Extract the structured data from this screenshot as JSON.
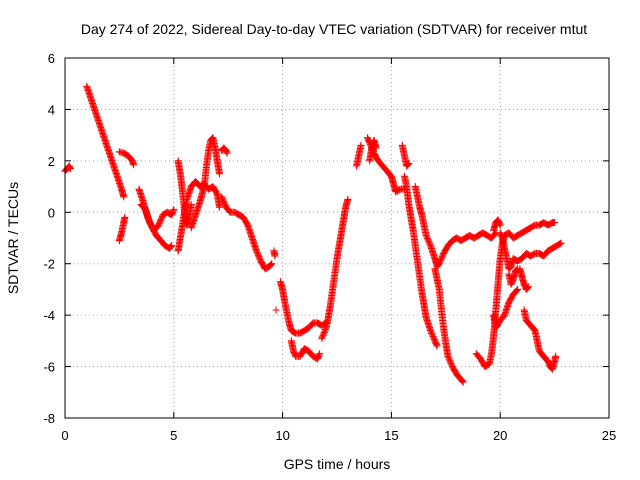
{
  "chart_data": {
    "type": "scatter",
    "title": "Day 274 of 2022, Sidereal Day-to-day VTEC variation (SDTVAR) for receiver mtut",
    "xlabel": "GPS time / hours",
    "ylabel": "SDTVAR / TECUs",
    "xlim": [
      0,
      25
    ],
    "ylim": [
      -8,
      6
    ],
    "xticks": [
      0,
      5,
      10,
      15,
      20,
      25
    ],
    "yticks": [
      -8,
      -6,
      -4,
      -2,
      0,
      2,
      4,
      6
    ],
    "grid": true,
    "marker": "plus",
    "series": [
      {
        "name": "SDTVAR",
        "color": "#ff0000",
        "segments": [
          [
            [
              0.0,
              1.6
            ],
            [
              0.1,
              1.7
            ],
            [
              0.2,
              1.8
            ],
            [
              0.25,
              1.7
            ]
          ],
          [
            [
              1.0,
              4.9
            ],
            [
              1.2,
              4.4
            ],
            [
              1.4,
              3.9
            ],
            [
              1.6,
              3.4
            ],
            [
              1.8,
              2.9
            ],
            [
              2.0,
              2.4
            ],
            [
              2.2,
              1.9
            ],
            [
              2.4,
              1.4
            ],
            [
              2.6,
              0.9
            ],
            [
              2.7,
              0.6
            ]
          ],
          [
            [
              2.5,
              2.35
            ],
            [
              2.7,
              2.3
            ],
            [
              2.9,
              2.2
            ],
            [
              3.1,
              2.0
            ],
            [
              3.15,
              1.85
            ]
          ],
          [
            [
              2.5,
              -1.1
            ],
            [
              2.6,
              -0.8
            ],
            [
              2.7,
              -0.4
            ],
            [
              2.75,
              -0.2
            ]
          ],
          [
            [
              3.4,
              0.9
            ],
            [
              3.6,
              0.4
            ],
            [
              3.8,
              -0.2
            ],
            [
              4.0,
              -0.6
            ],
            [
              4.2,
              -0.9
            ],
            [
              4.4,
              -1.1
            ],
            [
              4.6,
              -1.3
            ],
            [
              4.8,
              -1.4
            ],
            [
              4.9,
              -1.3
            ]
          ],
          [
            [
              3.5,
              0.3
            ],
            [
              3.7,
              0.1
            ],
            [
              3.9,
              -0.4
            ],
            [
              4.1,
              -0.7
            ],
            [
              4.3,
              -0.5
            ],
            [
              4.5,
              -0.1
            ],
            [
              4.7,
              0.0
            ],
            [
              4.9,
              -0.1
            ],
            [
              5.0,
              0.1
            ]
          ],
          [
            [
              5.2,
              2.0
            ],
            [
              5.3,
              1.5
            ],
            [
              5.4,
              0.8
            ],
            [
              5.5,
              0.0
            ],
            [
              5.6,
              -0.5
            ],
            [
              5.7,
              -0.2
            ],
            [
              5.8,
              0.3
            ]
          ],
          [
            [
              5.2,
              -1.5
            ],
            [
              5.3,
              -1.0
            ],
            [
              5.4,
              -0.5
            ],
            [
              5.5,
              0.1
            ],
            [
              5.6,
              0.5
            ],
            [
              5.8,
              1.0
            ],
            [
              6.0,
              1.2
            ],
            [
              6.2,
              1.0
            ],
            [
              6.4,
              1.1
            ],
            [
              6.6,
              0.9
            ],
            [
              6.8,
              1.0
            ],
            [
              7.0,
              0.7
            ],
            [
              7.1,
              0.2
            ]
          ],
          [
            [
              5.8,
              -0.6
            ],
            [
              6.0,
              -0.1
            ],
            [
              6.2,
              0.4
            ],
            [
              6.4,
              1.0
            ],
            [
              6.5,
              1.8
            ],
            [
              6.6,
              2.4
            ],
            [
              6.7,
              2.8
            ],
            [
              6.8,
              2.9
            ],
            [
              6.9,
              2.5
            ],
            [
              7.0,
              2.0
            ],
            [
              7.1,
              1.5
            ]
          ],
          [
            [
              7.2,
              2.4
            ],
            [
              7.3,
              2.5
            ],
            [
              7.4,
              2.4
            ],
            [
              7.45,
              2.3
            ]
          ],
          [
            [
              7.2,
              0.6
            ],
            [
              7.4,
              0.2
            ],
            [
              7.6,
              0.0
            ],
            [
              7.8,
              0.0
            ],
            [
              8.0,
              -0.1
            ],
            [
              8.2,
              -0.2
            ],
            [
              8.4,
              -0.5
            ],
            [
              8.6,
              -1.0
            ],
            [
              8.8,
              -1.5
            ],
            [
              9.0,
              -1.9
            ],
            [
              9.2,
              -2.2
            ],
            [
              9.4,
              -2.1
            ],
            [
              9.5,
              -2.0
            ]
          ],
          [
            [
              9.6,
              -1.5
            ],
            [
              9.65,
              -1.7
            ]
          ],
          [
            [
              9.7,
              -3.8
            ]
          ],
          [
            [
              9.9,
              -2.7
            ],
            [
              10.0,
              -3.0
            ],
            [
              10.1,
              -3.5
            ],
            [
              10.2,
              -3.9
            ],
            [
              10.3,
              -4.3
            ],
            [
              10.4,
              -4.6
            ],
            [
              10.6,
              -4.7
            ],
            [
              10.8,
              -4.7
            ],
            [
              11.0,
              -4.6
            ],
            [
              11.2,
              -4.5
            ],
            [
              11.4,
              -4.3
            ],
            [
              11.6,
              -4.3
            ],
            [
              11.8,
              -4.4
            ],
            [
              12.0,
              -4.3
            ]
          ],
          [
            [
              10.4,
              -5.0
            ],
            [
              10.5,
              -5.4
            ],
            [
              10.6,
              -5.6
            ],
            [
              10.8,
              -5.6
            ],
            [
              11.0,
              -5.3
            ],
            [
              11.2,
              -5.4
            ],
            [
              11.4,
              -5.6
            ],
            [
              11.6,
              -5.7
            ],
            [
              11.7,
              -5.5
            ]
          ],
          [
            [
              11.8,
              -4.9
            ],
            [
              12.0,
              -4.5
            ],
            [
              12.1,
              -4.1
            ],
            [
              12.2,
              -3.6
            ],
            [
              12.3,
              -3.0
            ],
            [
              12.4,
              -2.4
            ],
            [
              12.5,
              -1.8
            ],
            [
              12.6,
              -1.3
            ],
            [
              12.7,
              -0.8
            ],
            [
              12.8,
              -0.3
            ],
            [
              12.9,
              0.2
            ],
            [
              13.0,
              0.5
            ]
          ],
          [
            [
              13.4,
              1.8
            ],
            [
              13.5,
              2.2
            ],
            [
              13.6,
              2.6
            ]
          ],
          [
            [
              13.9,
              2.9
            ],
            [
              14.0,
              2.7
            ],
            [
              14.2,
              2.3
            ],
            [
              14.4,
              2.0
            ],
            [
              14.6,
              1.8
            ],
            [
              14.8,
              1.6
            ],
            [
              15.0,
              1.4
            ],
            [
              15.1,
              1.1
            ],
            [
              15.2,
              0.8
            ],
            [
              15.4,
              0.9
            ],
            [
              15.6,
              0.9
            ]
          ],
          [
            [
              14.0,
              2.0
            ],
            [
              14.1,
              2.5
            ],
            [
              14.2,
              2.8
            ],
            [
              14.3,
              2.5
            ]
          ],
          [
            [
              15.5,
              2.6
            ],
            [
              15.6,
              2.2
            ],
            [
              15.7,
              1.8
            ],
            [
              15.8,
              1.9
            ]
          ],
          [
            [
              15.6,
              1.4
            ],
            [
              15.7,
              1.0
            ],
            [
              15.8,
              0.3
            ],
            [
              15.9,
              -0.2
            ],
            [
              16.0,
              -0.7
            ],
            [
              16.1,
              -1.3
            ],
            [
              16.2,
              -1.9
            ],
            [
              16.3,
              -2.5
            ],
            [
              16.4,
              -3.1
            ],
            [
              16.5,
              -3.6
            ],
            [
              16.6,
              -4.1
            ],
            [
              16.8,
              -4.6
            ],
            [
              17.0,
              -5.0
            ],
            [
              17.1,
              -5.2
            ]
          ],
          [
            [
              16.1,
              1.0
            ],
            [
              16.2,
              0.6
            ],
            [
              16.3,
              0.2
            ],
            [
              16.4,
              -0.1
            ],
            [
              16.5,
              -0.5
            ],
            [
              16.6,
              -0.9
            ],
            [
              16.8,
              -1.3
            ],
            [
              17.0,
              -1.8
            ],
            [
              17.1,
              -2.1
            ],
            [
              17.2,
              -2.0
            ],
            [
              17.4,
              -1.6
            ],
            [
              17.6,
              -1.3
            ],
            [
              17.8,
              -1.1
            ],
            [
              18.0,
              -1.0
            ],
            [
              18.2,
              -1.1
            ],
            [
              18.4,
              -1.0
            ],
            [
              18.6,
              -0.9
            ],
            [
              18.8,
              -1.0
            ],
            [
              19.0,
              -0.9
            ],
            [
              19.2,
              -0.8
            ],
            [
              19.4,
              -0.9
            ],
            [
              19.6,
              -1.0
            ],
            [
              19.8,
              -0.8
            ]
          ],
          [
            [
              17.0,
              -2.2
            ],
            [
              17.2,
              -3.0
            ],
            [
              17.3,
              -3.8
            ],
            [
              17.4,
              -4.5
            ],
            [
              17.5,
              -5.1
            ],
            [
              17.6,
              -5.6
            ],
            [
              17.8,
              -6.0
            ],
            [
              18.0,
              -6.3
            ],
            [
              18.2,
              -6.5
            ],
            [
              18.3,
              -6.6
            ]
          ],
          [
            [
              18.9,
              -5.5
            ],
            [
              19.1,
              -5.7
            ],
            [
              19.3,
              -6.0
            ],
            [
              19.5,
              -5.9
            ],
            [
              19.6,
              -5.5
            ],
            [
              19.7,
              -4.8
            ],
            [
              19.8,
              -3.8
            ],
            [
              19.9,
              -2.8
            ],
            [
              20.0,
              -1.8
            ],
            [
              20.1,
              -1.2
            ],
            [
              20.2,
              -0.9
            ],
            [
              20.4,
              -0.8
            ],
            [
              20.6,
              -1.0
            ],
            [
              20.8,
              -0.9
            ],
            [
              21.0,
              -0.8
            ],
            [
              21.2,
              -0.7
            ],
            [
              21.4,
              -0.6
            ],
            [
              21.6,
              -0.5
            ],
            [
              21.8,
              -0.5
            ],
            [
              22.0,
              -0.4
            ],
            [
              22.2,
              -0.5
            ],
            [
              22.4,
              -0.4
            ],
            [
              22.5,
              -0.4
            ]
          ],
          [
            [
              19.7,
              -0.7
            ],
            [
              19.8,
              -0.4
            ],
            [
              19.9,
              -0.3
            ],
            [
              20.0,
              -0.5
            ]
          ],
          [
            [
              19.7,
              -4.0
            ],
            [
              19.8,
              -4.5
            ],
            [
              20.0,
              -4.2
            ],
            [
              20.2,
              -4.0
            ],
            [
              20.4,
              -3.5
            ],
            [
              20.6,
              -3.2
            ],
            [
              20.8,
              -3.0
            ]
          ],
          [
            [
              20.0,
              -0.8
            ],
            [
              20.1,
              -1.0
            ],
            [
              20.2,
              -1.4
            ],
            [
              20.3,
              -1.8
            ],
            [
              20.4,
              -2.2
            ],
            [
              20.5,
              -2.1
            ],
            [
              20.6,
              -1.8
            ],
            [
              20.8,
              -1.9
            ],
            [
              21.0,
              -1.8
            ],
            [
              21.2,
              -1.6
            ],
            [
              21.4,
              -1.7
            ],
            [
              21.6,
              -1.6
            ],
            [
              21.8,
              -1.6
            ],
            [
              22.0,
              -1.7
            ],
            [
              22.2,
              -1.5
            ],
            [
              22.4,
              -1.4
            ],
            [
              22.6,
              -1.3
            ],
            [
              22.8,
              -1.2
            ]
          ],
          [
            [
              20.4,
              -2.4
            ],
            [
              20.5,
              -2.8
            ],
            [
              20.6,
              -2.6
            ],
            [
              20.7,
              -2.3
            ],
            [
              20.8,
              -2.2
            ]
          ],
          [
            [
              20.9,
              -2.2
            ],
            [
              21.0,
              -2.5
            ],
            [
              21.1,
              -2.8
            ],
            [
              21.2,
              -3.0
            ],
            [
              21.3,
              -2.9
            ]
          ],
          [
            [
              21.1,
              -3.8
            ],
            [
              21.2,
              -4.2
            ],
            [
              21.4,
              -4.4
            ],
            [
              21.6,
              -4.6
            ],
            [
              21.7,
              -5.0
            ],
            [
              21.8,
              -5.4
            ],
            [
              22.0,
              -5.6
            ],
            [
              22.2,
              -5.8
            ],
            [
              22.3,
              -6.0
            ],
            [
              22.4,
              -6.1
            ],
            [
              22.5,
              -5.8
            ],
            [
              22.55,
              -5.6
            ]
          ]
        ]
      }
    ]
  }
}
